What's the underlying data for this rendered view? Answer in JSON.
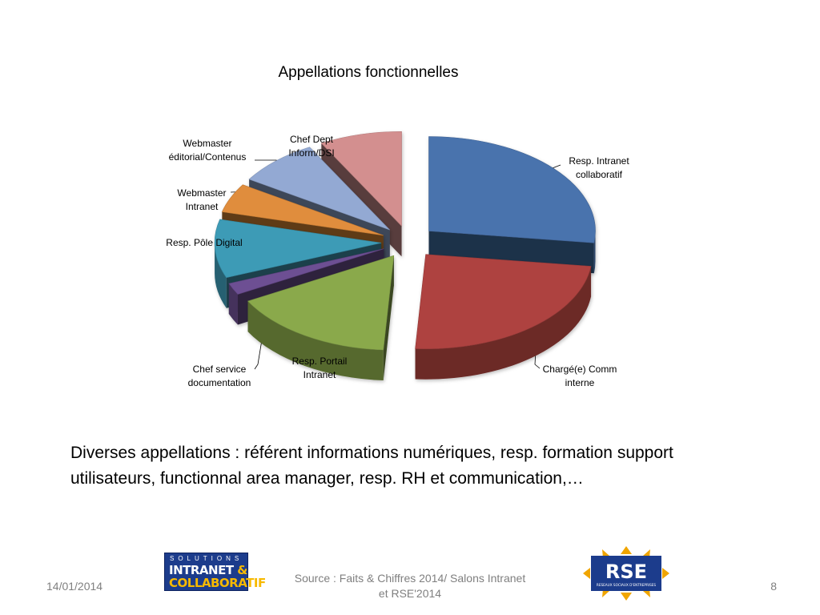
{
  "chart_data": {
    "type": "pie",
    "title": "Appellations fonctionnelles",
    "style": "3d-exploded",
    "slices": [
      {
        "label": "Resp. Intranet collaboratif",
        "value": 27,
        "color": "#4a73ad"
      },
      {
        "label": "Chargé(e) Comm interne",
        "value": 24,
        "color": "#ae4341"
      },
      {
        "label": "Resp. Portail Intranet",
        "value": 16,
        "color": "#8aa94c"
      },
      {
        "label": "Chef service documentation",
        "value": 2,
        "color": "#6d4f93"
      },
      {
        "label": "Resp. Pôle Digital",
        "value": 10,
        "color": "#3d9bb6"
      },
      {
        "label": "Webmaster Intranet",
        "value": 5,
        "color": "#e08d3c"
      },
      {
        "label": "Webmaster éditorial/Contenus",
        "value": 8,
        "color": "#93a9d3"
      },
      {
        "label": "Chef Dept Inform/DSI",
        "value": 8,
        "color": "#d38f8f"
      }
    ]
  },
  "slide": {
    "body_text": "Diverses appellations : référent informations numériques, resp. formation support utilisateurs,  functionnal area manager, resp. RH et communication,…",
    "date": "14/01/2014",
    "source": "Source : Faits & Chiffres 2014/ Salons Intranet et RSE'2014",
    "page_number": "8"
  },
  "logos": {
    "left": {
      "line1": "SOLUTIONS",
      "line2a": "INTRANET",
      "line2b": "&",
      "line3": "COLLABORATIF"
    },
    "right": {
      "text": "RSE",
      "subtitle": "RESEAUX SOCIAUX D'ENTREPRISES"
    }
  }
}
